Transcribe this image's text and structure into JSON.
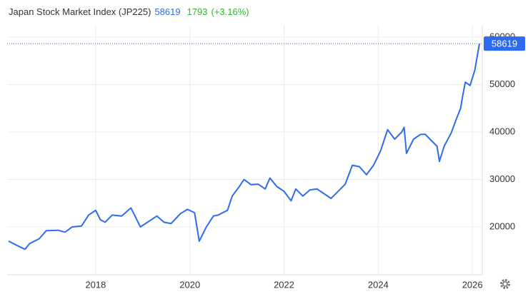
{
  "chart_data": {
    "type": "line",
    "title": "Japan Stock Market Index (JP225)",
    "last_price": 58619,
    "change": 1793,
    "change_percent": "(+3.16%)",
    "x": [
      2016.15,
      2016.25,
      2016.35,
      2016.5,
      2016.6,
      2016.8,
      2016.95,
      2017.2,
      2017.35,
      2017.5,
      2017.7,
      2017.85,
      2018.0,
      2018.1,
      2018.2,
      2018.35,
      2018.55,
      2018.75,
      2018.85,
      2018.95,
      2019.1,
      2019.3,
      2019.45,
      2019.6,
      2019.8,
      2019.95,
      2020.1,
      2020.2,
      2020.35,
      2020.5,
      2020.6,
      2020.8,
      2020.9,
      2021.05,
      2021.15,
      2021.3,
      2021.45,
      2021.6,
      2021.7,
      2021.85,
      2022.0,
      2022.15,
      2022.25,
      2022.4,
      2022.55,
      2022.7,
      2022.85,
      2023.0,
      2023.15,
      2023.3,
      2023.45,
      2023.6,
      2023.75,
      2023.9,
      2024.05,
      2024.15,
      2024.2,
      2024.35,
      2024.5,
      2024.55,
      2024.6,
      2024.75,
      2024.9,
      2025.0,
      2025.1,
      2025.25,
      2025.3,
      2025.4,
      2025.55,
      2025.65,
      2025.75,
      2025.8,
      2025.85,
      2025.95,
      2026.05,
      2026.15
    ],
    "series": [
      {
        "name": "JP225",
        "color": "#2f6bf0",
        "values": [
          17000,
          16500,
          16000,
          15300,
          16500,
          17500,
          19200,
          19300,
          18900,
          20000,
          20200,
          22500,
          23500,
          21500,
          21000,
          22500,
          22300,
          24000,
          22000,
          20000,
          21000,
          22300,
          21000,
          20700,
          22800,
          23700,
          23000,
          17000,
          20000,
          22300,
          22500,
          23500,
          26500,
          28500,
          30000,
          28900,
          29000,
          28000,
          30300,
          28500,
          27500,
          25500,
          28000,
          26500,
          27800,
          28000,
          27000,
          26000,
          27500,
          29000,
          33000,
          32700,
          31000,
          33000,
          36000,
          39000,
          40500,
          38500,
          40000,
          41000,
          35500,
          38500,
          39500,
          39500,
          38500,
          37000,
          33800,
          37000,
          39800,
          42500,
          45000,
          48000,
          50500,
          49800,
          53000,
          58619
        ]
      }
    ],
    "xlim": [
      2016.12,
      2026.21
    ],
    "xticks": [
      2018,
      2020,
      2022,
      2024,
      2026
    ],
    "ylim": [
      10000,
      61000
    ],
    "yticks": [
      20000,
      30000,
      40000,
      50000,
      60000
    ],
    "grid": true
  }
}
